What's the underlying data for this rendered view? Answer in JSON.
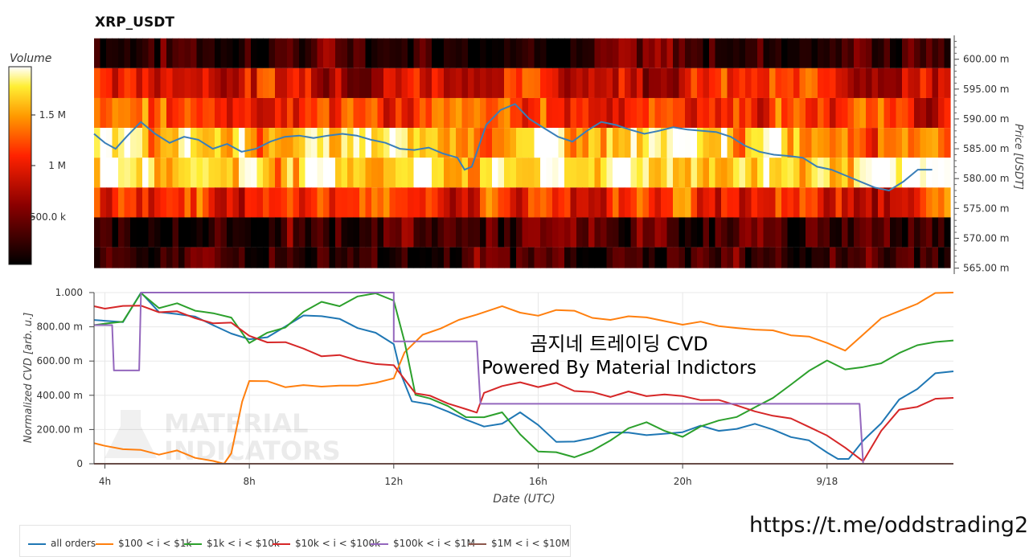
{
  "chart_data": [
    {
      "type": "heatmap",
      "title": "XRP_USDT",
      "ylabel": "Price [USDT]",
      "colorbar_label": "Volume",
      "colorbar_ticks": [
        "1.5 M",
        "1 M",
        "500.0 k"
      ],
      "y_ticks": [
        "600.00 m",
        "595.00 m",
        "590.00 m",
        "585.00 m",
        "580.00 m",
        "575.00 m",
        "570.00 m",
        "565.00 m"
      ],
      "ylim": [
        0.564,
        0.604
      ],
      "price_bands": [
        0.6035,
        0.5985,
        0.5935,
        0.5885,
        0.5835,
        0.5785,
        0.5735,
        0.5685,
        0.565
      ],
      "band_base_level": [
        0.15,
        0.5,
        0.58,
        0.82,
        0.9,
        0.55,
        0.15,
        0.12,
        0.1
      ],
      "price_line": {
        "x": [
          3.7,
          4.0,
          4.3,
          4.6,
          5.0,
          5.4,
          5.8,
          6.2,
          6.6,
          7.0,
          7.4,
          7.8,
          8.2,
          8.6,
          9.0,
          9.4,
          9.8,
          10.2,
          10.6,
          11.0,
          11.4,
          11.8,
          12.2,
          12.6,
          13.0,
          13.4,
          13.8,
          14.0,
          14.2,
          14.6,
          15.0,
          15.4,
          15.8,
          16.2,
          16.6,
          17.0,
          17.4,
          17.8,
          18.2,
          18.6,
          19.0,
          19.4,
          19.8,
          20.2,
          20.6,
          21.0,
          21.4,
          21.8,
          22.2,
          22.6,
          23.0,
          23.4,
          23.8,
          24.2,
          24.6,
          25.0,
          25.4,
          25.8,
          26.2,
          26.6,
          27.0
        ],
        "y": [
          0.5875,
          0.586,
          0.585,
          0.587,
          0.5895,
          0.5875,
          0.586,
          0.587,
          0.5865,
          0.585,
          0.5858,
          0.5845,
          0.585,
          0.5862,
          0.587,
          0.5872,
          0.5868,
          0.5872,
          0.5875,
          0.5872,
          0.5865,
          0.586,
          0.585,
          0.5848,
          0.5852,
          0.5842,
          0.5835,
          0.5815,
          0.582,
          0.589,
          0.5915,
          0.5925,
          0.59,
          0.5885,
          0.587,
          0.5862,
          0.588,
          0.5895,
          0.589,
          0.5882,
          0.5875,
          0.588,
          0.5886,
          0.5882,
          0.588,
          0.5878,
          0.587,
          0.5855,
          0.5845,
          0.584,
          0.5838,
          0.5835,
          0.582,
          0.5815,
          0.5805,
          0.5795,
          0.5785,
          0.578,
          0.5795,
          0.5815,
          0.5815
        ]
      }
    },
    {
      "type": "line",
      "title": "곰지네 트레이딩 CVD",
      "subtitle": "Powered By Material Indictors",
      "xlabel": "Date (UTC)",
      "ylabel": "Normalized CVD [arb. u.]",
      "xlim": [
        3.7,
        27.5
      ],
      "ylim": [
        0,
        1000
      ],
      "x_ticks": [
        {
          "x": 4,
          "label": "4h"
        },
        {
          "x": 8,
          "label": "8h"
        },
        {
          "x": 12,
          "label": "12h"
        },
        {
          "x": 16,
          "label": "16h"
        },
        {
          "x": 20,
          "label": "20h"
        },
        {
          "x": 24,
          "label": "9/18"
        }
      ],
      "y_ticks": [
        {
          "v": 1000,
          "label": "1.000"
        },
        {
          "v": 800,
          "label": "800.00 m"
        },
        {
          "v": 600,
          "label": "600.00 m"
        },
        {
          "v": 400,
          "label": "400.00 m"
        },
        {
          "v": 200,
          "label": "200.00 m"
        },
        {
          "v": 0,
          "label": "0"
        }
      ],
      "watermark": [
        "MATERIAL",
        "INDICATORS"
      ],
      "series": [
        {
          "name": "all orders",
          "color": "#1f77b4",
          "x": [
            3.7,
            4.5,
            5.0,
            5.5,
            6.0,
            6.5,
            7.0,
            7.5,
            8.0,
            8.5,
            9.0,
            9.5,
            10.0,
            10.5,
            11.0,
            11.5,
            12.0,
            12.2,
            12.5,
            13.0,
            13.5,
            14.0,
            14.5,
            15.0,
            15.5,
            16.0,
            16.5,
            17.0,
            17.5,
            18.0,
            18.5,
            19.0,
            19.5,
            20.0,
            20.5,
            21.0,
            21.5,
            22.0,
            22.5,
            23.0,
            23.5,
            24.0,
            24.3,
            24.6,
            25.0,
            25.5,
            26.0,
            26.5,
            27.0,
            27.5
          ],
          "y": [
            840,
            820,
            1000,
            900,
            860,
            860,
            820,
            780,
            730,
            750,
            800,
            850,
            860,
            830,
            800,
            760,
            700,
            540,
            350,
            340,
            300,
            250,
            200,
            240,
            300,
            220,
            120,
            120,
            160,
            200,
            170,
            180,
            160,
            200,
            210,
            190,
            220,
            230,
            200,
            170,
            120,
            80,
            20,
            40,
            120,
            250,
            360,
            450,
            510,
            540
          ]
        },
        {
          "name": "$100 < i < $1k",
          "color": "#ff7f0e",
          "x": [
            3.7,
            4.0,
            4.5,
            5.0,
            5.5,
            6.0,
            6.5,
            7.0,
            7.3,
            7.5,
            7.8,
            8.0,
            8.5,
            9.0,
            9.5,
            10.0,
            10.5,
            11.0,
            11.5,
            12.0,
            12.3,
            12.8,
            13.3,
            13.8,
            14.3,
            14.8,
            15.0,
            15.5,
            16.0,
            16.5,
            17.0,
            17.5,
            18.0,
            18.5,
            19.0,
            19.5,
            20.0,
            20.5,
            21.0,
            21.5,
            22.0,
            22.5,
            23.0,
            23.5,
            24.0,
            24.5,
            25.0,
            25.5,
            26.0,
            26.5,
            27.0,
            27.5
          ],
          "y": [
            120,
            110,
            90,
            80,
            70,
            60,
            45,
            20,
            5,
            60,
            350,
            470,
            470,
            440,
            440,
            450,
            460,
            470,
            490,
            500,
            640,
            740,
            800,
            850,
            880,
            920,
            940,
            870,
            860,
            900,
            880,
            870,
            860,
            850,
            840,
            850,
            830,
            830,
            820,
            810,
            790,
            780,
            760,
            730,
            700,
            680,
            760,
            830,
            880,
            940,
            980,
            1000
          ]
        },
        {
          "name": "$1k < i < $10k",
          "color": "#2ca02c",
          "x": [
            3.7,
            4.0,
            4.5,
            5.0,
            5.5,
            6.0,
            6.5,
            7.0,
            7.5,
            8.0,
            8.5,
            9.0,
            9.5,
            10.0,
            10.5,
            11.0,
            11.5,
            12.0,
            12.3,
            12.6,
            13.0,
            13.5,
            14.0,
            14.5,
            15.0,
            15.5,
            16.0,
            16.5,
            17.0,
            17.5,
            18.0,
            18.5,
            19.0,
            19.5,
            20.0,
            20.5,
            21.0,
            21.5,
            22.0,
            22.5,
            23.0,
            23.5,
            24.0,
            24.5,
            25.0,
            25.5,
            26.0,
            26.5,
            27.0,
            27.5
          ],
          "y": [
            810,
            800,
            840,
            980,
            890,
            940,
            900,
            890,
            860,
            700,
            780,
            800,
            900,
            960,
            940,
            980,
            990,
            950,
            700,
            420,
            380,
            330,
            260,
            280,
            300,
            180,
            80,
            60,
            20,
            60,
            130,
            220,
            240,
            180,
            160,
            210,
            250,
            290,
            320,
            390,
            460,
            560,
            600,
            560,
            580,
            580,
            640,
            700,
            730,
            720
          ]
        },
        {
          "name": "$10k < i < $100k",
          "color": "#d62728",
          "x": [
            3.7,
            4.0,
            4.5,
            5.0,
            5.5,
            6.0,
            6.5,
            7.0,
            7.5,
            8.0,
            8.5,
            9.0,
            9.5,
            10.0,
            10.5,
            11.0,
            11.5,
            12.0,
            12.3,
            12.6,
            13.0,
            13.5,
            14.0,
            14.3,
            14.5,
            15.0,
            15.5,
            16.0,
            16.5,
            17.0,
            17.5,
            18.0,
            18.5,
            19.0,
            19.5,
            20.0,
            20.5,
            21.0,
            21.5,
            22.0,
            22.5,
            23.0,
            23.5,
            24.0,
            24.5,
            25.0,
            25.5,
            26.0,
            26.5,
            27.0,
            27.5
          ],
          "y": [
            920,
            920,
            940,
            940,
            900,
            880,
            860,
            840,
            810,
            730,
            720,
            700,
            670,
            640,
            620,
            600,
            590,
            570,
            500,
            430,
            400,
            360,
            310,
            290,
            400,
            440,
            460,
            450,
            460,
            430,
            420,
            410,
            420,
            400,
            390,
            380,
            370,
            360,
            330,
            310,
            290,
            260,
            220,
            160,
            80,
            0,
            200,
            300,
            340,
            370,
            385
          ]
        },
        {
          "name": "$100k < i < $1M",
          "color": "#9467bd",
          "x": [
            3.7,
            4.2,
            4.25,
            4.95,
            5.0,
            12.0,
            12.0,
            14.3,
            14.4,
            24.9,
            25.0,
            27.5
          ],
          "y": [
            810,
            810,
            545,
            545,
            1000,
            1000,
            715,
            715,
            350,
            350,
            0,
            0
          ]
        },
        {
          "name": "$1M < i < $10M",
          "color": "#8c564b",
          "x": [
            3.7,
            27.5
          ],
          "y": [
            0,
            0
          ]
        }
      ]
    }
  ],
  "watermark_url": "https://t.me/oddstrading2"
}
